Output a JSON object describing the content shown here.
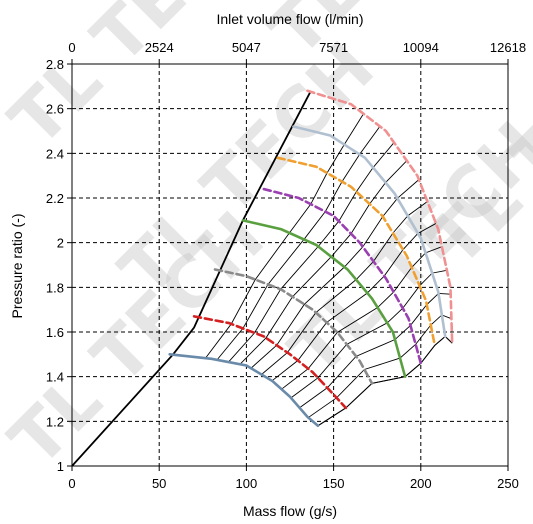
{
  "chart_data": {
    "type": "line",
    "title": "",
    "xlabel": "Mass flow (g/s)",
    "x2label": "Inlet volume flow (l/min)",
    "ylabel": "Pressure ratio (-)",
    "xlim": [
      0,
      250
    ],
    "x2lim": [
      0,
      12618
    ],
    "ylim": [
      1,
      2.8
    ],
    "xticks": [
      0,
      50,
      100,
      150,
      200,
      250
    ],
    "x2ticks": [
      0,
      2524,
      5047,
      7571,
      10094,
      12618
    ],
    "yticks": [
      1,
      1.2,
      1.4,
      1.6,
      1.8,
      2,
      2.2,
      2.4,
      2.6,
      2.8
    ],
    "grid": true,
    "surge_line": [
      [
        0,
        1.0
      ],
      [
        58,
        1.5
      ],
      [
        70,
        1.62
      ],
      [
        98,
        2.1
      ],
      [
        137,
        2.68
      ]
    ],
    "speed_lines": [
      {
        "color": "#6a8aaa",
        "dash": "solid",
        "points": [
          [
            56,
            1.5
          ],
          [
            80,
            1.48
          ],
          [
            100,
            1.45
          ],
          [
            115,
            1.38
          ],
          [
            125,
            1.31
          ],
          [
            135,
            1.22
          ],
          [
            141,
            1.18
          ]
        ]
      },
      {
        "color": "#d42020",
        "dash": "dashed",
        "points": [
          [
            70,
            1.67
          ],
          [
            90,
            1.64
          ],
          [
            110,
            1.58
          ],
          [
            125,
            1.5
          ],
          [
            138,
            1.42
          ],
          [
            150,
            1.32
          ],
          [
            157,
            1.26
          ]
        ]
      },
      {
        "color": "#8a8a8a",
        "dash": "dashed",
        "points": [
          [
            82,
            1.88
          ],
          [
            100,
            1.85
          ],
          [
            120,
            1.79
          ],
          [
            138,
            1.7
          ],
          [
            152,
            1.6
          ],
          [
            165,
            1.47
          ],
          [
            172,
            1.37
          ]
        ]
      },
      {
        "color": "#5aa040",
        "dash": "solid",
        "points": [
          [
            98,
            2.1
          ],
          [
            120,
            2.06
          ],
          [
            140,
            1.99
          ],
          [
            158,
            1.88
          ],
          [
            172,
            1.75
          ],
          [
            184,
            1.6
          ],
          [
            191,
            1.4
          ]
        ]
      },
      {
        "color": "#9a40b0",
        "dash": "dashed",
        "points": [
          [
            110,
            2.24
          ],
          [
            130,
            2.2
          ],
          [
            150,
            2.12
          ],
          [
            165,
            2.0
          ],
          [
            180,
            1.84
          ],
          [
            193,
            1.66
          ],
          [
            200,
            1.46
          ]
        ]
      },
      {
        "color": "#f0a030",
        "dash": "dashed",
        "points": [
          [
            118,
            2.38
          ],
          [
            140,
            2.34
          ],
          [
            160,
            2.25
          ],
          [
            178,
            2.12
          ],
          [
            192,
            1.94
          ],
          [
            203,
            1.74
          ],
          [
            208,
            1.54
          ]
        ]
      },
      {
        "color": "#b0c0d0",
        "dash": "solid",
        "points": [
          [
            127,
            2.52
          ],
          [
            148,
            2.48
          ],
          [
            168,
            2.38
          ],
          [
            185,
            2.22
          ],
          [
            200,
            2.02
          ],
          [
            210,
            1.78
          ],
          [
            214,
            1.58
          ]
        ]
      },
      {
        "color": "#f09090",
        "dash": "dashed",
        "points": [
          [
            135,
            2.68
          ],
          [
            160,
            2.62
          ],
          [
            180,
            2.5
          ],
          [
            198,
            2.3
          ],
          [
            210,
            2.06
          ],
          [
            217,
            1.8
          ],
          [
            218,
            1.55
          ]
        ]
      }
    ],
    "choke_line": [
      [
        141,
        1.18
      ],
      [
        157,
        1.26
      ],
      [
        172,
        1.37
      ],
      [
        191,
        1.4
      ],
      [
        200,
        1.46
      ],
      [
        208,
        1.54
      ],
      [
        214,
        1.58
      ],
      [
        218,
        1.55
      ]
    ],
    "efficiency_island_count": 12
  }
}
